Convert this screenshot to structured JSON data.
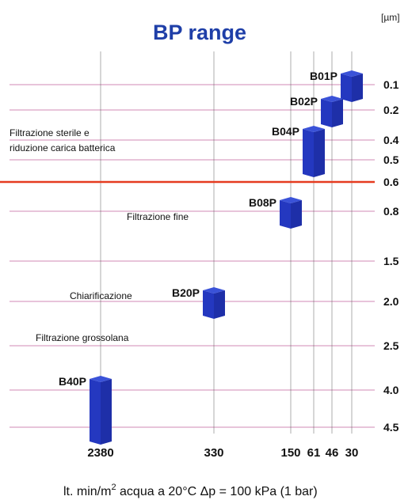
{
  "chart_data": {
    "type": "scatter",
    "title": "BP range",
    "unit_label": "[µm]",
    "xlabel": "lt. min/m",
    "xlabel_sup": "2",
    "xlabel_rest": " acqua a 20°C Δp = 100 kPa (1 bar)",
    "x_ticks": [
      "2380",
      "330",
      "150",
      "61",
      "46",
      "30"
    ],
    "y_ticks": [
      "0.1",
      "0.2",
      "0.4",
      "0.5",
      "0.6",
      "0.8",
      "1.5",
      "2.0",
      "2.5",
      "4.0",
      "4.5"
    ],
    "highlight_line": "0.6",
    "highlight_color": "#e53b1f",
    "grid_color": "#b84a8c",
    "bar_color": "#1e2fa8",
    "products": [
      {
        "name": "B01P",
        "x": "30",
        "y_top": "0.1",
        "y_bottom": "0.1"
      },
      {
        "name": "B02P",
        "x": "46",
        "y_top": "0.2",
        "y_bottom": "0.2"
      },
      {
        "name": "B04P",
        "x": "61",
        "y_top": "0.4",
        "y_bottom": "0.5"
      },
      {
        "name": "B08P",
        "x": "150",
        "y_top": "0.8",
        "y_bottom": "0.8"
      },
      {
        "name": "B20P",
        "x": "330",
        "y_top": "2.0",
        "y_bottom": "2.0"
      },
      {
        "name": "B40P",
        "x": "2380",
        "y_top": "4.0",
        "y_bottom": "4.5"
      }
    ],
    "annotations": [
      {
        "text": "Filtrazione sterile e"
      },
      {
        "text": "riduzione carica batterica"
      },
      {
        "text": "Filtrazione fine"
      },
      {
        "text": "Chiarificazione"
      },
      {
        "text": "Filtrazione grossolana"
      }
    ]
  }
}
